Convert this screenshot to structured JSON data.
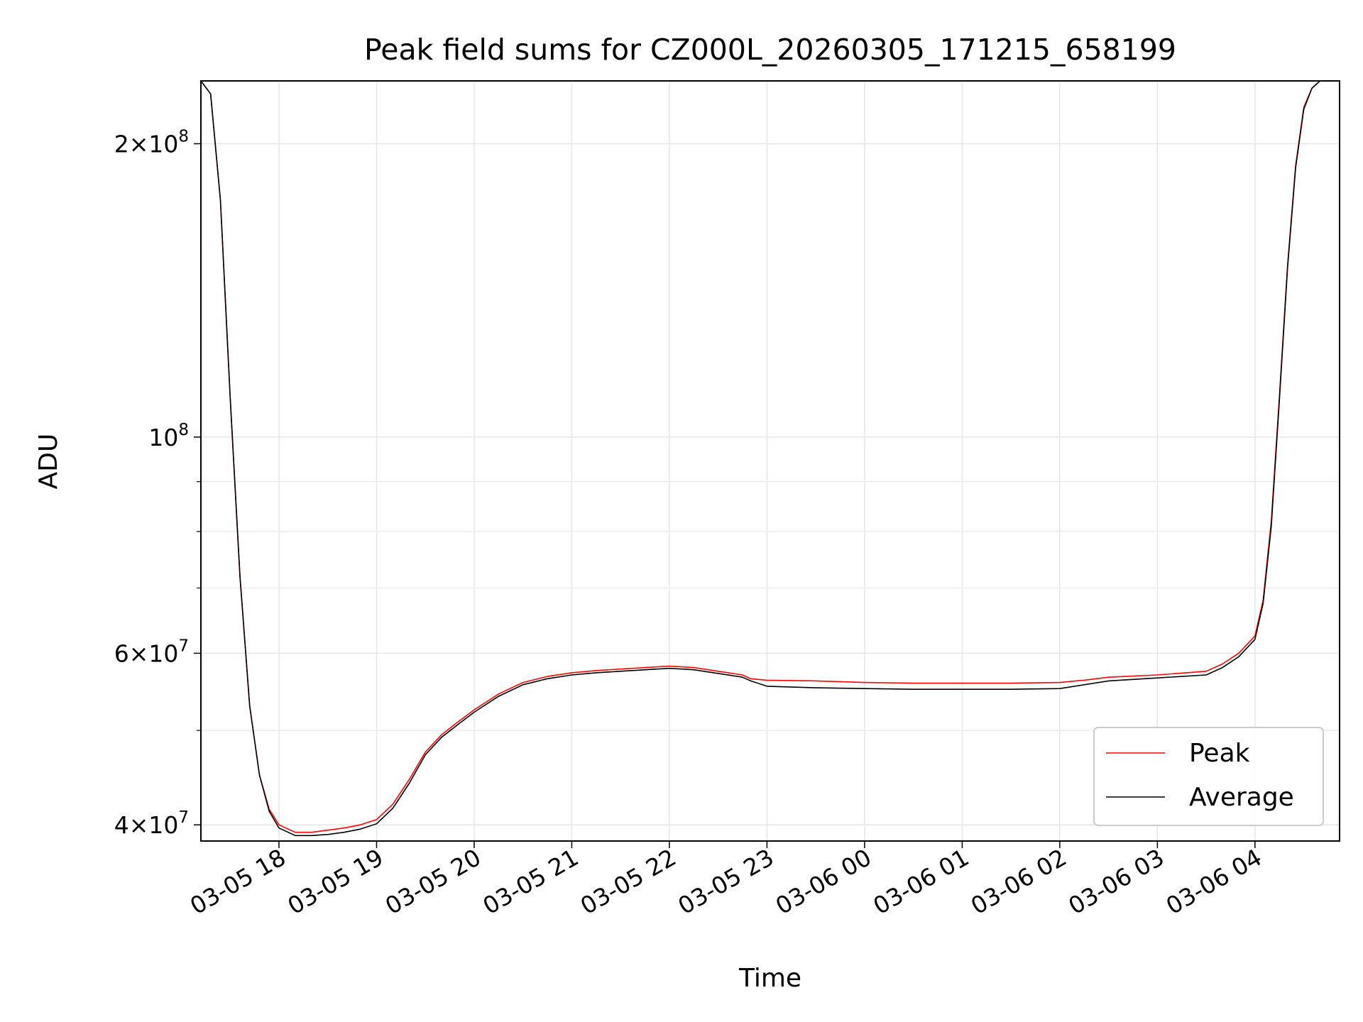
{
  "chart_data": {
    "type": "line",
    "title": "Peak field sums for CZ000L_20260305_171215_658199",
    "xlabel": "Time",
    "ylabel": "ADU",
    "yscale": "log",
    "grid": true,
    "legend_position": "lower-right",
    "x_range": [
      "2026-03-05 17:12",
      "2026-03-06 04:52"
    ],
    "ylim": [
      38500000,
      232000000
    ],
    "x_ticks": [
      "03-05 18",
      "03-05 19",
      "03-05 20",
      "03-05 21",
      "03-05 22",
      "03-05 23",
      "03-06 00",
      "03-06 01",
      "03-06 02",
      "03-06 03",
      "03-06 04"
    ],
    "y_ticks": [
      {
        "value": 40000000,
        "mant": "4",
        "exp": "7"
      },
      {
        "value": 60000000,
        "mant": "6",
        "exp": "7"
      },
      {
        "value": 100000000,
        "mant": "",
        "exp": "8"
      },
      {
        "value": 200000000,
        "mant": "2",
        "exp": "8"
      }
    ],
    "series": [
      {
        "name": "Peak",
        "color": "#ff0000",
        "x": [
          "2026-03-05 17:12",
          "2026-03-05 17:18",
          "2026-03-05 17:24",
          "2026-03-05 17:30",
          "2026-03-05 17:36",
          "2026-03-05 17:42",
          "2026-03-05 17:48",
          "2026-03-05 17:54",
          "2026-03-05 18:00",
          "2026-03-05 18:10",
          "2026-03-05 18:20",
          "2026-03-05 18:30",
          "2026-03-05 18:40",
          "2026-03-05 18:50",
          "2026-03-05 19:00",
          "2026-03-05 19:10",
          "2026-03-05 19:20",
          "2026-03-05 19:30",
          "2026-03-05 19:40",
          "2026-03-05 19:50",
          "2026-03-05 20:00",
          "2026-03-05 20:15",
          "2026-03-05 20:30",
          "2026-03-05 20:45",
          "2026-03-05 21:00",
          "2026-03-05 21:15",
          "2026-03-05 21:30",
          "2026-03-05 21:45",
          "2026-03-05 22:00",
          "2026-03-05 22:15",
          "2026-03-05 22:30",
          "2026-03-05 22:45",
          "2026-03-05 22:50",
          "2026-03-05 23:00",
          "2026-03-05 23:30",
          "2026-03-06 00:00",
          "2026-03-06 00:30",
          "2026-03-06 01:00",
          "2026-03-06 01:30",
          "2026-03-06 02:00",
          "2026-03-06 02:15",
          "2026-03-06 02:30",
          "2026-03-06 03:00",
          "2026-03-06 03:30",
          "2026-03-06 03:40",
          "2026-03-06 03:50",
          "2026-03-06 04:00",
          "2026-03-06 04:05",
          "2026-03-06 04:10",
          "2026-03-06 04:15",
          "2026-03-06 04:20",
          "2026-03-06 04:25",
          "2026-03-06 04:30",
          "2026-03-06 04:35",
          "2026-03-06 04:40",
          "2026-03-06 04:45",
          "2026-03-06 04:52"
        ],
        "values": [
          232000000,
          225000000,
          175000000,
          110000000,
          72000000,
          53000000,
          45000000,
          41500000,
          40000000,
          39300000,
          39300000,
          39500000,
          39700000,
          40000000,
          40500000,
          42000000,
          44500000,
          47500000,
          49500000,
          51000000,
          52500000,
          54500000,
          56000000,
          56800000,
          57300000,
          57600000,
          57800000,
          58000000,
          58200000,
          58000000,
          57500000,
          57000000,
          56500000,
          56300000,
          56200000,
          56000000,
          55900000,
          55900000,
          55900000,
          56000000,
          56300000,
          56700000,
          57000000,
          57500000,
          58500000,
          60000000,
          62500000,
          68000000,
          82000000,
          110000000,
          150000000,
          190000000,
          218000000,
          228000000,
          232000000,
          232000000,
          232000000
        ]
      },
      {
        "name": "Average",
        "color": "#000000",
        "x": [
          "2026-03-05 17:12",
          "2026-03-05 17:18",
          "2026-03-05 17:24",
          "2026-03-05 17:30",
          "2026-03-05 17:36",
          "2026-03-05 17:42",
          "2026-03-05 17:48",
          "2026-03-05 17:54",
          "2026-03-05 18:00",
          "2026-03-05 18:10",
          "2026-03-05 18:20",
          "2026-03-05 18:30",
          "2026-03-05 18:40",
          "2026-03-05 18:50",
          "2026-03-05 19:00",
          "2026-03-05 19:10",
          "2026-03-05 19:20",
          "2026-03-05 19:30",
          "2026-03-05 19:40",
          "2026-03-05 19:50",
          "2026-03-05 20:00",
          "2026-03-05 20:15",
          "2026-03-05 20:30",
          "2026-03-05 20:45",
          "2026-03-05 21:00",
          "2026-03-05 21:15",
          "2026-03-05 21:30",
          "2026-03-05 21:45",
          "2026-03-05 22:00",
          "2026-03-05 22:15",
          "2026-03-05 22:30",
          "2026-03-05 22:45",
          "2026-03-05 22:50",
          "2026-03-05 23:00",
          "2026-03-05 23:30",
          "2026-03-06 00:00",
          "2026-03-06 00:30",
          "2026-03-06 01:00",
          "2026-03-06 01:30",
          "2026-03-06 02:00",
          "2026-03-06 02:15",
          "2026-03-06 02:30",
          "2026-03-06 03:00",
          "2026-03-06 03:30",
          "2026-03-06 03:40",
          "2026-03-06 03:50",
          "2026-03-06 04:00",
          "2026-03-06 04:05",
          "2026-03-06 04:10",
          "2026-03-06 04:15",
          "2026-03-06 04:20",
          "2026-03-06 04:25",
          "2026-03-06 04:30",
          "2026-03-06 04:35",
          "2026-03-06 04:40",
          "2026-03-06 04:45",
          "2026-03-06 04:52"
        ],
        "values": [
          232000000,
          225000000,
          175000000,
          110000000,
          72000000,
          53000000,
          45000000,
          41300000,
          39700000,
          39000000,
          39000000,
          39100000,
          39300000,
          39600000,
          40100000,
          41600000,
          44100000,
          47200000,
          49200000,
          50700000,
          52200000,
          54200000,
          55700000,
          56500000,
          57000000,
          57300000,
          57500000,
          57700000,
          57900000,
          57700000,
          57200000,
          56700000,
          56200000,
          55500000,
          55300000,
          55200000,
          55100000,
          55100000,
          55100000,
          55200000,
          55700000,
          56200000,
          56600000,
          57000000,
          58000000,
          59500000,
          62000000,
          67500000,
          81000000,
          109000000,
          149000000,
          189000000,
          217000000,
          228000000,
          232000000,
          232000000,
          232000000
        ]
      }
    ]
  }
}
